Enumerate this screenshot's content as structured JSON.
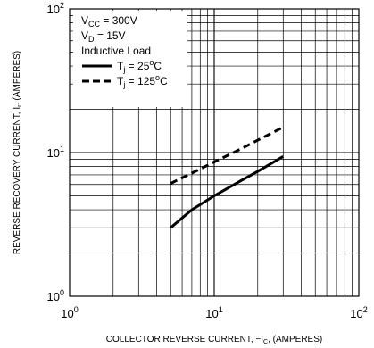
{
  "chart_data": {
    "type": "line",
    "xscale": "log",
    "yscale": "log",
    "xlim": [
      1,
      100
    ],
    "ylim": [
      1,
      100
    ],
    "grid": true,
    "legend_position": "top-left",
    "x_ticks": [
      {
        "base": "10",
        "exp": "0"
      },
      {
        "base": "10",
        "exp": "1"
      },
      {
        "base": "10",
        "exp": "2"
      }
    ],
    "y_ticks": [
      {
        "base": "10",
        "exp": "0"
      },
      {
        "base": "10",
        "exp": "1"
      },
      {
        "base": "10",
        "exp": "2"
      }
    ],
    "xlabel": {
      "main": "COLLECTOR REVERSE CURRENT, −I",
      "sub": "C",
      "tail": ", (AMPERES)"
    },
    "ylabel": {
      "main": "REVERSE RECOVERY CURRENT, I",
      "sub": "rr",
      "tail": " (AMPERES)"
    },
    "conditions": [
      {
        "main": "V",
        "sub": "CC",
        "tail": " = 300V"
      },
      {
        "main": "V",
        "sub": "D",
        "tail": " = 15V"
      },
      {
        "main": "Inductive Load",
        "sub": "",
        "tail": ""
      }
    ],
    "series": [
      {
        "name": {
          "main": "T",
          "sub": "j",
          "tail": " = 25",
          "sup": "o",
          "unit": "C"
        },
        "style": "solid",
        "color": "#000000",
        "x": [
          5,
          7,
          10,
          15,
          20,
          30
        ],
        "y": [
          3.0,
          4.0,
          5.0,
          6.3,
          7.4,
          9.4
        ]
      },
      {
        "name": {
          "main": "T",
          "sub": "j",
          "tail": " = 125",
          "sup": "o",
          "unit": "C"
        },
        "style": "dashed",
        "color": "#000000",
        "x": [
          5,
          7,
          10,
          15,
          20,
          30
        ],
        "y": [
          6.1,
          7.2,
          8.6,
          10.5,
          12.2,
          15.0
        ]
      }
    ]
  }
}
